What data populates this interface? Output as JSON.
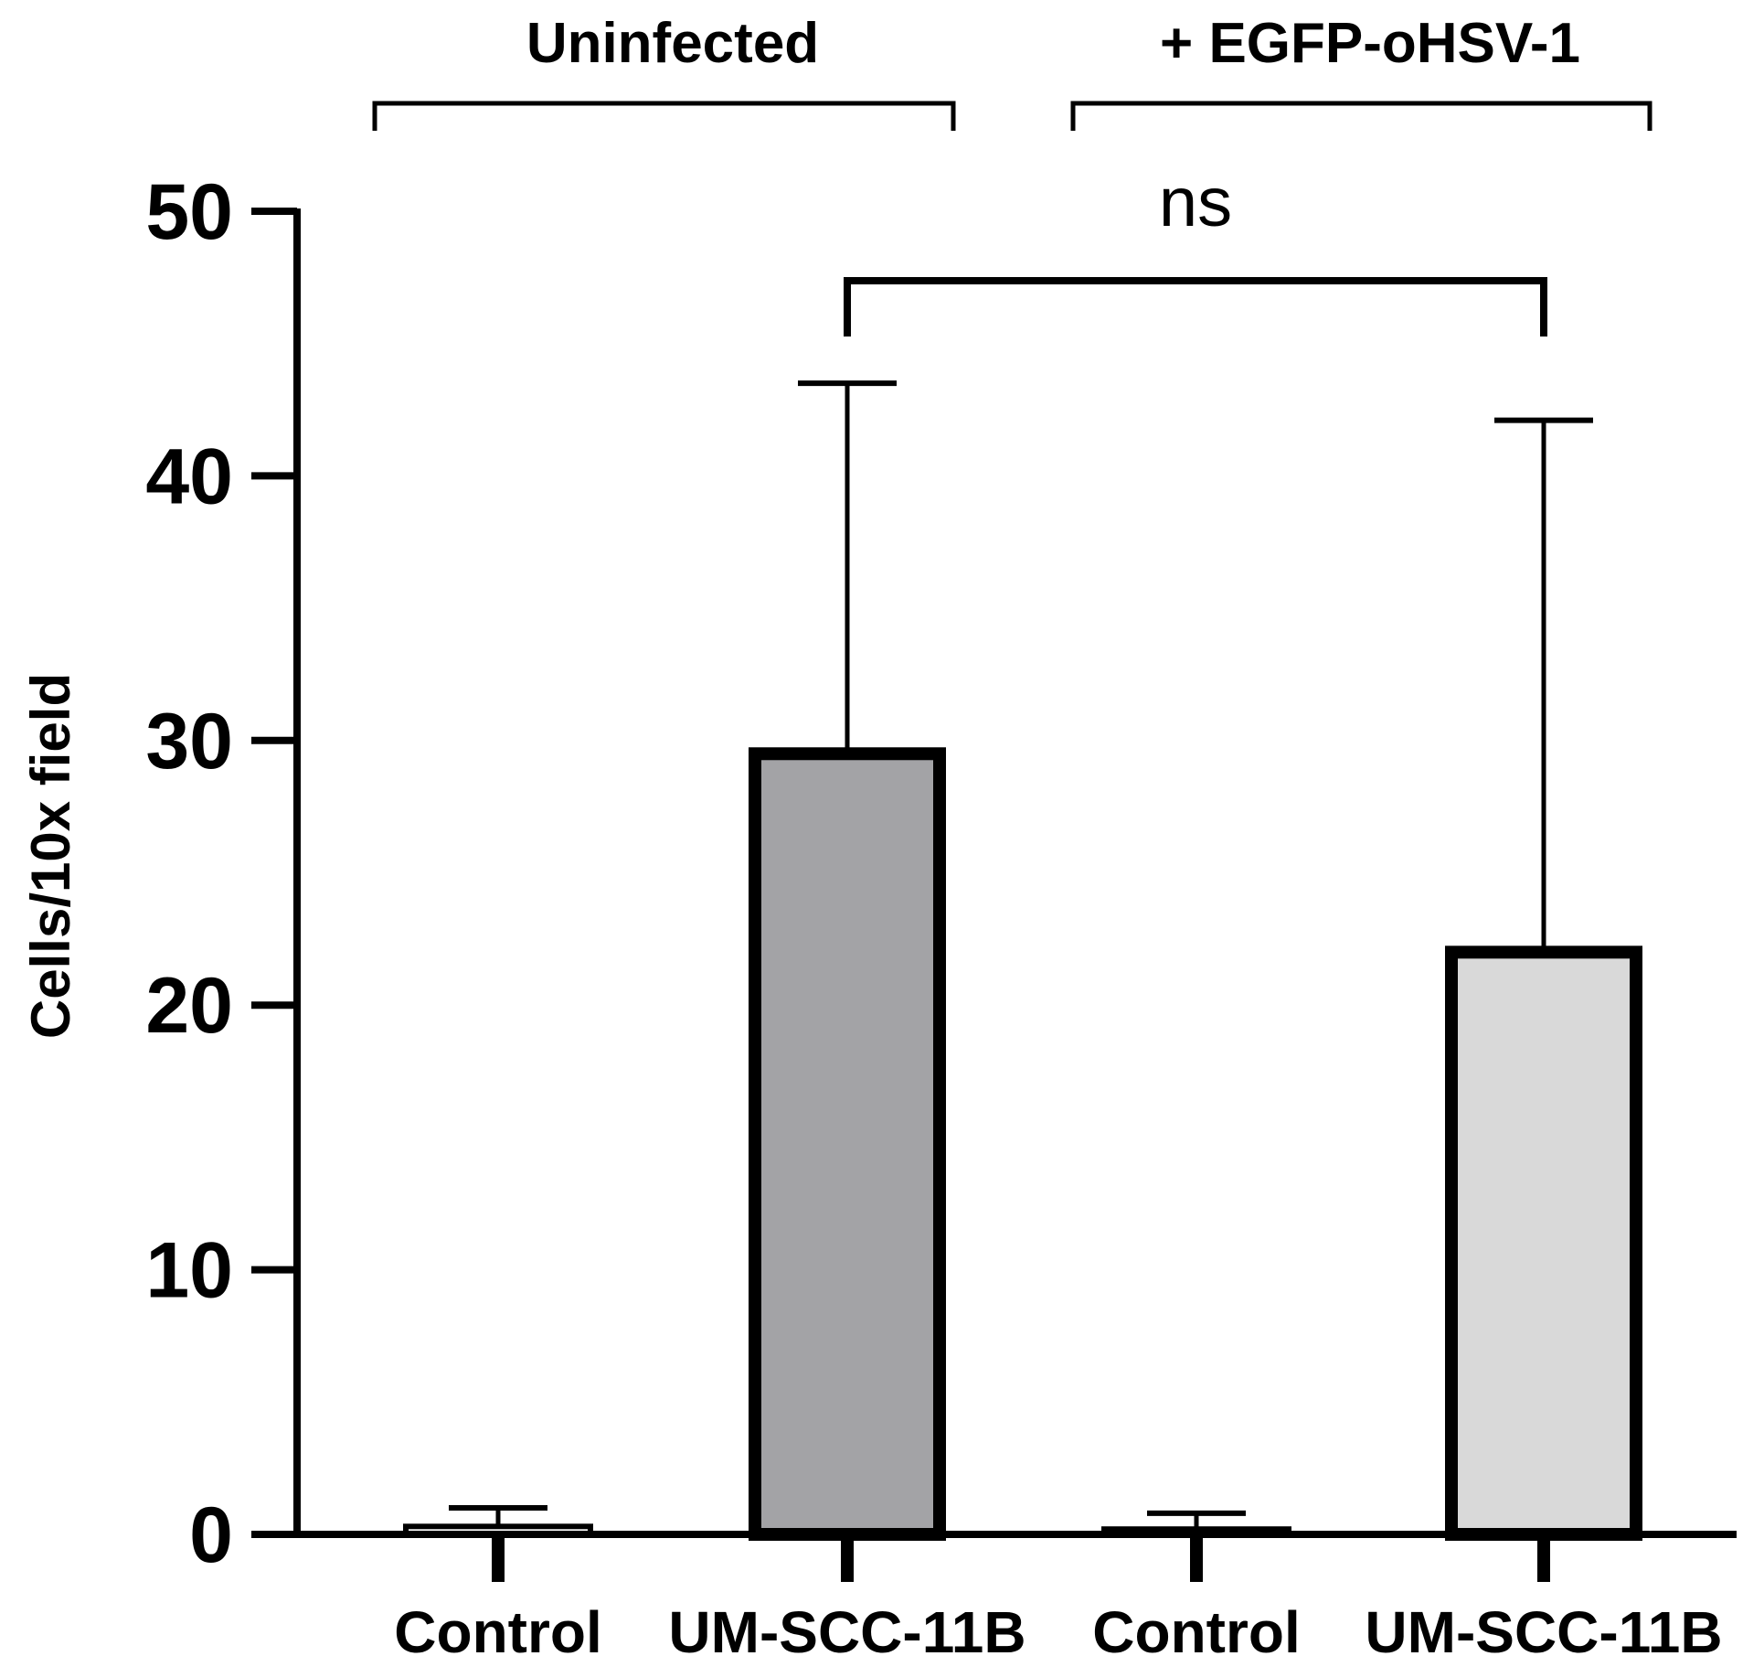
{
  "chart_data": {
    "type": "bar",
    "categories": [
      "Control",
      "UM-SCC-11B",
      "Control",
      "UM-SCC-11B"
    ],
    "values": [
      0.3,
      29.5,
      0.2,
      22.0
    ],
    "error_upper": [
      1.0,
      43.5,
      0.8,
      42.1
    ],
    "colors": [
      "#ffffff",
      "#a3a3a6",
      "#ffffff",
      "#d9d9d9"
    ],
    "ylabel": "Cells/10x field",
    "ylim": [
      0,
      50
    ],
    "yticks": [
      0,
      10,
      20,
      30,
      40,
      50
    ],
    "groups": [
      {
        "label": "Uninfected",
        "bars": [
          0,
          1
        ]
      },
      {
        "label": "+ EGFP-oHSV-1",
        "bars": [
          2,
          3
        ]
      }
    ],
    "comparisons": [
      {
        "bars": [
          1,
          3
        ],
        "label": "ns"
      }
    ]
  }
}
